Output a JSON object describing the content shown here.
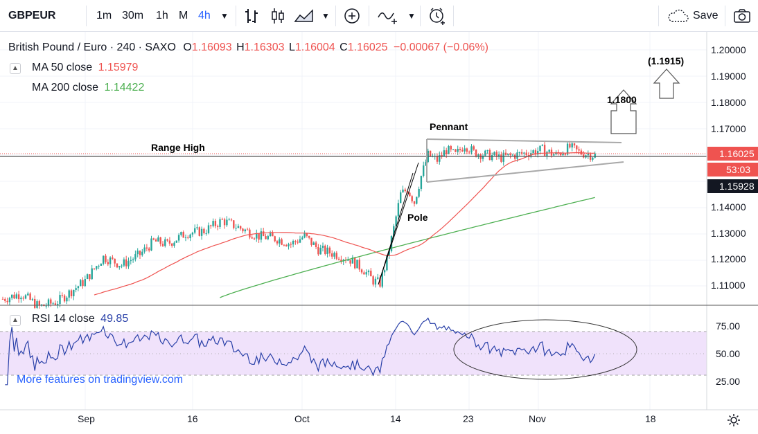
{
  "toolbar": {
    "symbol": "GBPEUR",
    "intervals": [
      "1m",
      "30m",
      "1h",
      "M",
      "4h"
    ],
    "active_interval": "4h",
    "save_label": "Save"
  },
  "legend": {
    "title": "British Pound / Euro · 240 · SAXO",
    "o_label": "O",
    "o_value": "1.16093",
    "h_label": "H",
    "h_value": "1.16303",
    "l_label": "L",
    "l_value": "1.16004",
    "c_label": "C",
    "c_value": "1.16025",
    "change": "−0.00067 (−0.06%)",
    "ma50_label": "MA 50 close",
    "ma50_value": "1.15979",
    "ma200_label": "MA 200 close",
    "ma200_value": "1.14422",
    "rsi_label": "RSI 14 close",
    "rsi_value": "49.85"
  },
  "price_axis": {
    "ticks": [
      "1.20000",
      "1.19000",
      "1.18000",
      "1.17000",
      "1.14000",
      "1.13000",
      "1.12000",
      "1.11000"
    ],
    "current_price": "1.16025",
    "countdown": "53:03",
    "crosshair_price": "1.15928"
  },
  "rsi_axis": {
    "ticks": [
      "75.00",
      "50.00",
      "25.00"
    ]
  },
  "date_axis": {
    "ticks": [
      "Sep",
      "16",
      "Oct",
      "14",
      "23",
      "Nov",
      "18"
    ]
  },
  "annotations": {
    "range_high": "Range High",
    "pennant": "Pennant",
    "pole": "Pole",
    "target1": "1.1800",
    "target2": "(1.1915)"
  },
  "watermark": "More features on tradingview.com",
  "colors": {
    "up": "#26a69a",
    "down": "#ef5350",
    "ma50": "#ef5350",
    "ma200": "#4caf50",
    "rsi": "#2940a8",
    "rsi_band": "#f0e2fb",
    "accent": "#2962ff"
  },
  "chart_data": {
    "type": "candlestick",
    "symbol": "GBPEUR",
    "timeframe": "240",
    "ylim": [
      1.1,
      1.2
    ],
    "ohlc_last": {
      "open": 1.16093,
      "high": 1.16303,
      "low": 1.16004,
      "close": 1.16025
    },
    "series": [
      {
        "name": "MA 50 close",
        "last": 1.15979
      },
      {
        "name": "MA 200 close",
        "last": 1.14422
      },
      {
        "name": "RSI 14 close",
        "last": 49.85
      }
    ],
    "price_waypoints": [
      [
        0,
        1.105
      ],
      [
        8,
        1.107
      ],
      [
        16,
        1.102
      ],
      [
        24,
        1.104
      ],
      [
        36,
        1.112
      ],
      [
        44,
        1.121
      ],
      [
        52,
        1.118
      ],
      [
        60,
        1.122
      ],
      [
        66,
        1.127
      ],
      [
        72,
        1.126
      ],
      [
        80,
        1.13
      ],
      [
        88,
        1.131
      ],
      [
        96,
        1.135
      ],
      [
        104,
        1.132
      ],
      [
        112,
        1.129
      ],
      [
        120,
        1.128
      ],
      [
        126,
        1.126
      ],
      [
        132,
        1.129
      ],
      [
        138,
        1.124
      ],
      [
        146,
        1.122
      ],
      [
        152,
        1.12
      ],
      [
        158,
        1.116
      ],
      [
        162,
        1.112
      ],
      [
        165,
        1.111
      ],
      [
        168,
        1.12
      ],
      [
        171,
        1.132
      ],
      [
        174,
        1.145
      ],
      [
        177,
        1.147
      ],
      [
        180,
        1.142
      ],
      [
        183,
        1.152
      ],
      [
        186,
        1.16
      ],
      [
        190,
        1.158
      ],
      [
        194,
        1.162
      ],
      [
        198,
        1.16
      ],
      [
        202,
        1.164
      ],
      [
        206,
        1.161
      ],
      [
        212,
        1.16
      ],
      [
        218,
        1.159
      ],
      [
        224,
        1.16
      ],
      [
        230,
        1.161
      ],
      [
        236,
        1.162
      ],
      [
        242,
        1.16
      ],
      [
        248,
        1.163
      ],
      [
        252,
        1.161
      ],
      [
        258,
        1.16
      ]
    ]
  }
}
